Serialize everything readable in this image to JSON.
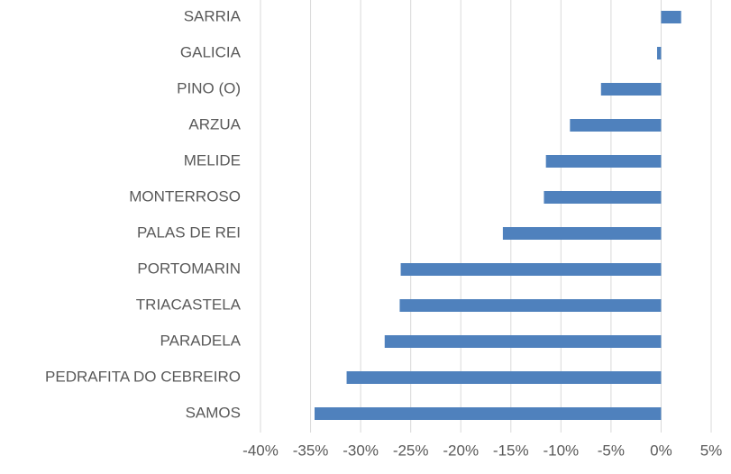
{
  "chart_data": {
    "type": "bar",
    "orientation": "horizontal",
    "categories": [
      "SARRIA",
      "GALICIA",
      "PINO (O)",
      "ARZUA",
      "MELIDE",
      "MONTERROSO",
      "PALAS DE REI",
      "PORTOMARIN",
      "TRIACASTELA",
      "PARADELA",
      "PEDRAFITA DO CEBREIRO",
      "SAMOS"
    ],
    "values": [
      2.0,
      -0.4,
      -6.0,
      -9.1,
      -11.5,
      -11.7,
      -15.8,
      -26.0,
      -26.1,
      -27.6,
      -31.4,
      -34.6
    ],
    "color": "#4f81bd",
    "xlim": [
      -40,
      5
    ],
    "xticks": [
      {
        "value": -40,
        "label": "-40%"
      },
      {
        "value": -35,
        "label": "-35%"
      },
      {
        "value": -30,
        "label": "-30%"
      },
      {
        "value": -25,
        "label": "-25%"
      },
      {
        "value": -20,
        "label": "-20%"
      },
      {
        "value": -15,
        "label": "-15%"
      },
      {
        "value": -10,
        "label": "-10%"
      },
      {
        "value": -5,
        "label": "-5%"
      },
      {
        "value": 0,
        "label": "0%"
      },
      {
        "value": 5,
        "label": "5%"
      }
    ],
    "grid": true
  }
}
